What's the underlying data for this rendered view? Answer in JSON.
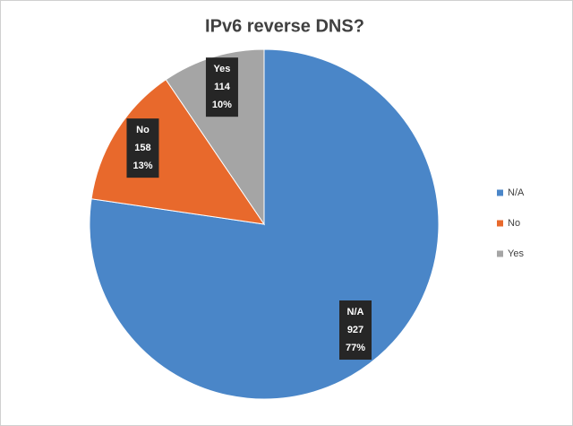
{
  "chart_data": {
    "type": "pie",
    "title": "IPv6 reverse DNS?",
    "categories": [
      "N/A",
      "No",
      "Yes"
    ],
    "values": [
      927,
      158,
      114
    ],
    "percent_labels": [
      "77%",
      "13%",
      "10%"
    ],
    "colors": [
      "#4a86c8",
      "#e8692c",
      "#a5a5a5"
    ],
    "legend": "right"
  }
}
